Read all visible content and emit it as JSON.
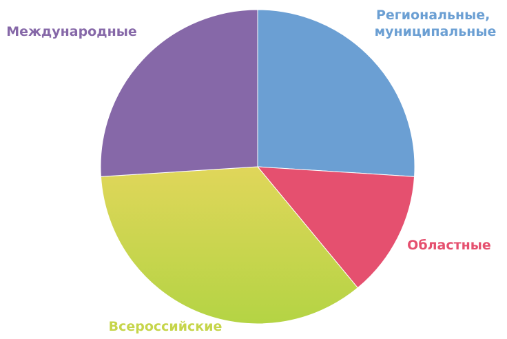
{
  "chart_data": {
    "type": "pie",
    "categories": [
      "Региональные, муниципальные",
      "Областные",
      "Всероссийские",
      "Международные"
    ],
    "values": [
      26,
      13,
      35,
      26
    ],
    "colors": [
      "#6b9fd3",
      "#e5506f",
      "#c6d54a",
      "#8668a8"
    ]
  }
}
